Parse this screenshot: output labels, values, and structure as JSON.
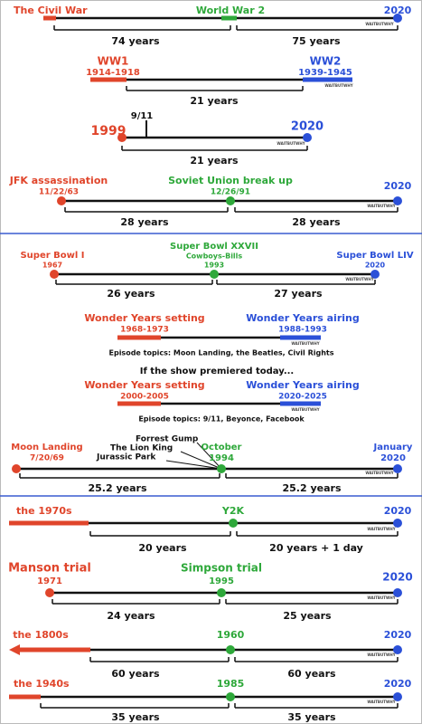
{
  "rows": [
    {
      "labels": [
        "The Civil War",
        "World War 2",
        "2020"
      ],
      "spans": [
        "74 years",
        "75 years"
      ]
    },
    {
      "labels": [
        "WW1",
        "1914-1918",
        "WW2",
        "1939-1945"
      ],
      "spans": [
        "21 years"
      ]
    },
    {
      "labels": [
        "9/11",
        "1999",
        "2020"
      ],
      "spans": [
        "21 years"
      ]
    },
    {
      "labels": [
        "JFK assassination",
        "11/22/63",
        "Soviet Union break up",
        "12/26/91",
        "2020"
      ],
      "spans": [
        "28 years",
        "28 years"
      ]
    },
    {
      "labels": [
        "Super Bowl I",
        "1967",
        "Super Bowl XXVII",
        "Cowboys-Bills",
        "1993",
        "Super Bowl LIV",
        "2020"
      ],
      "spans": [
        "26 years",
        "27 years"
      ]
    },
    {
      "labels": [
        "Wonder Years setting",
        "1968-1973",
        "Wonder Years airing",
        "1988-1993"
      ],
      "note": "Episode topics: Moon Landing, the Beatles, Civil Rights"
    },
    {
      "labels": [
        "Wonder Years setting",
        "2000-2005",
        "Wonder Years airing",
        "2020-2025"
      ],
      "note": "Episode topics: 9/11, Beyonce, Facebook"
    },
    {
      "labels": [
        "Forrest Gump",
        "The Lion King",
        "Jurassic Park",
        "Moon Landing",
        "7/20/69",
        "October",
        "1994",
        "January",
        "2020"
      ],
      "spans": [
        "25.2 years",
        "25.2 years"
      ]
    },
    {
      "labels": [
        "the 1970s",
        "Y2K",
        "2020"
      ],
      "spans": [
        "20 years",
        "20 years + 1 day"
      ]
    },
    {
      "labels": [
        "Manson trial",
        "1971",
        "Simpson trial",
        "1995",
        "2020"
      ],
      "spans": [
        "24 years",
        "25 years"
      ]
    },
    {
      "labels": [
        "the 1800s",
        "1960",
        "2020"
      ],
      "spans": [
        "60 years",
        "60 years"
      ]
    },
    {
      "labels": [
        "the 1940s",
        "1985",
        "2020"
      ],
      "spans": [
        "35 years",
        "35 years"
      ]
    }
  ],
  "premise": "If the show premiered today...",
  "watermark": "WAITBUTWHY"
}
